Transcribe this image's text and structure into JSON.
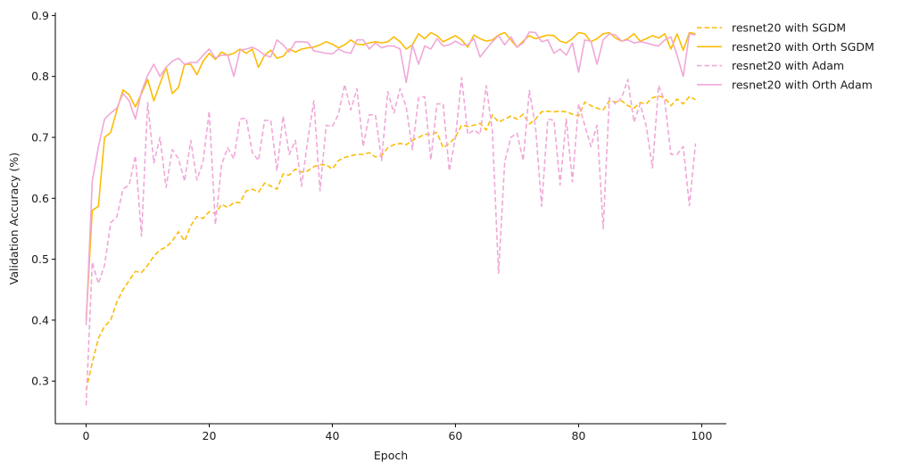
{
  "chart_data": {
    "type": "line",
    "xlabel": "Epoch",
    "ylabel": "Validation Accuracy (%)",
    "xlim": [
      -5,
      104
    ],
    "ylim": [
      0.23,
      0.905
    ],
    "xticks": [
      0,
      20,
      40,
      60,
      80,
      100
    ],
    "yticks": [
      0.3,
      0.4,
      0.5,
      0.6,
      0.7,
      0.8,
      0.9
    ],
    "grid": false,
    "legend_position": "top-right",
    "series": [
      {
        "name": "resnet20 with SGDM",
        "color": "#fbbc05",
        "dash": "dashed",
        "values": [
          0.285,
          0.33,
          0.37,
          0.39,
          0.4,
          0.43,
          0.45,
          0.465,
          0.48,
          0.478,
          0.49,
          0.505,
          0.515,
          0.52,
          0.53,
          0.545,
          0.53,
          0.555,
          0.57,
          0.567,
          0.578,
          0.575,
          0.59,
          0.585,
          0.593,
          0.593,
          0.612,
          0.615,
          0.61,
          0.625,
          0.62,
          0.615,
          0.64,
          0.638,
          0.648,
          0.643,
          0.645,
          0.652,
          0.655,
          0.655,
          0.648,
          0.662,
          0.667,
          0.67,
          0.672,
          0.672,
          0.675,
          0.668,
          0.67,
          0.683,
          0.688,
          0.69,
          0.688,
          0.695,
          0.7,
          0.705,
          0.705,
          0.708,
          0.683,
          0.69,
          0.7,
          0.72,
          0.718,
          0.72,
          0.723,
          0.712,
          0.737,
          0.725,
          0.73,
          0.735,
          0.73,
          0.738,
          0.722,
          0.73,
          0.742,
          0.743,
          0.742,
          0.743,
          0.742,
          0.738,
          0.735,
          0.758,
          0.752,
          0.748,
          0.745,
          0.76,
          0.758,
          0.76,
          0.752,
          0.748,
          0.757,
          0.755,
          0.765,
          0.768,
          0.765,
          0.752,
          0.763,
          0.755,
          0.767,
          0.762
        ]
      },
      {
        "name": "resnet20 with Orth SGDM",
        "color": "#fbbc05",
        "dash": "solid",
        "values": [
          0.4,
          0.58,
          0.587,
          0.7,
          0.708,
          0.745,
          0.778,
          0.77,
          0.75,
          0.772,
          0.795,
          0.76,
          0.788,
          0.815,
          0.772,
          0.782,
          0.82,
          0.82,
          0.803,
          0.825,
          0.838,
          0.828,
          0.84,
          0.835,
          0.838,
          0.845,
          0.838,
          0.845,
          0.815,
          0.835,
          0.843,
          0.83,
          0.833,
          0.845,
          0.84,
          0.845,
          0.847,
          0.848,
          0.852,
          0.857,
          0.853,
          0.847,
          0.852,
          0.86,
          0.853,
          0.852,
          0.855,
          0.857,
          0.855,
          0.857,
          0.865,
          0.857,
          0.845,
          0.852,
          0.87,
          0.862,
          0.872,
          0.867,
          0.857,
          0.862,
          0.867,
          0.86,
          0.848,
          0.868,
          0.862,
          0.858,
          0.86,
          0.868,
          0.872,
          0.86,
          0.848,
          0.858,
          0.867,
          0.862,
          0.865,
          0.868,
          0.867,
          0.858,
          0.855,
          0.862,
          0.872,
          0.87,
          0.857,
          0.862,
          0.87,
          0.872,
          0.863,
          0.858,
          0.862,
          0.87,
          0.858,
          0.862,
          0.867,
          0.863,
          0.87,
          0.845,
          0.87,
          0.843,
          0.872,
          0.87
        ]
      },
      {
        "name": "resnet20 with Adam",
        "color": "#f0a8d8",
        "dash": "dashed",
        "values": [
          0.26,
          0.495,
          0.46,
          0.49,
          0.56,
          0.57,
          0.615,
          0.622,
          0.67,
          0.538,
          0.757,
          0.658,
          0.7,
          0.618,
          0.68,
          0.665,
          0.628,
          0.695,
          0.63,
          0.66,
          0.743,
          0.557,
          0.655,
          0.683,
          0.665,
          0.73,
          0.732,
          0.675,
          0.662,
          0.728,
          0.728,
          0.645,
          0.735,
          0.672,
          0.695,
          0.62,
          0.695,
          0.76,
          0.612,
          0.72,
          0.718,
          0.738,
          0.787,
          0.745,
          0.78,
          0.685,
          0.737,
          0.737,
          0.662,
          0.775,
          0.74,
          0.78,
          0.75,
          0.68,
          0.765,
          0.767,
          0.663,
          0.755,
          0.755,
          0.645,
          0.7,
          0.798,
          0.705,
          0.712,
          0.705,
          0.785,
          0.71,
          0.477,
          0.66,
          0.7,
          0.707,
          0.662,
          0.777,
          0.718,
          0.587,
          0.73,
          0.728,
          0.622,
          0.73,
          0.627,
          0.755,
          0.72,
          0.685,
          0.72,
          0.55,
          0.765,
          0.755,
          0.765,
          0.795,
          0.725,
          0.755,
          0.718,
          0.65,
          0.785,
          0.76,
          0.672,
          0.672,
          0.685,
          0.588,
          0.69
        ]
      },
      {
        "name": "resnet20 with Orth Adam",
        "color": "#f0a8d8",
        "dash": "solid",
        "values": [
          0.392,
          0.628,
          0.685,
          0.73,
          0.74,
          0.748,
          0.772,
          0.76,
          0.73,
          0.775,
          0.802,
          0.82,
          0.8,
          0.815,
          0.825,
          0.83,
          0.82,
          0.823,
          0.823,
          0.835,
          0.845,
          0.83,
          0.835,
          0.835,
          0.8,
          0.843,
          0.845,
          0.848,
          0.843,
          0.835,
          0.832,
          0.86,
          0.852,
          0.84,
          0.857,
          0.857,
          0.856,
          0.842,
          0.84,
          0.838,
          0.837,
          0.845,
          0.84,
          0.838,
          0.86,
          0.86,
          0.845,
          0.855,
          0.847,
          0.85,
          0.85,
          0.845,
          0.79,
          0.852,
          0.82,
          0.85,
          0.845,
          0.862,
          0.85,
          0.852,
          0.858,
          0.852,
          0.852,
          0.862,
          0.832,
          0.845,
          0.857,
          0.867,
          0.852,
          0.865,
          0.848,
          0.855,
          0.873,
          0.872,
          0.857,
          0.86,
          0.838,
          0.845,
          0.835,
          0.855,
          0.807,
          0.86,
          0.858,
          0.82,
          0.86,
          0.87,
          0.868,
          0.858,
          0.86,
          0.855,
          0.857,
          0.855,
          0.852,
          0.85,
          0.86,
          0.865,
          0.835,
          0.8,
          0.87,
          0.868
        ]
      }
    ]
  }
}
